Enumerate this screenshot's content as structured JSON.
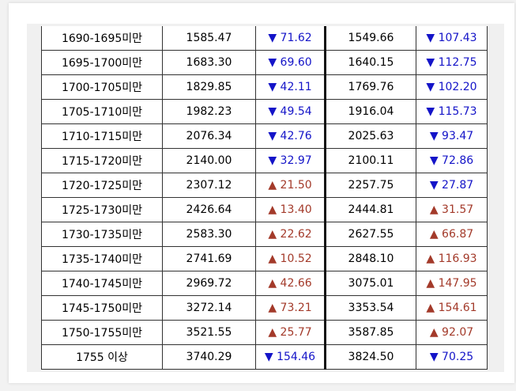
{
  "table": {
    "rows": [
      {
        "range": "1690-1695미만",
        "v1": "1585.47",
        "c1": "▼ 71.62",
        "d1": "down",
        "v2": "1549.66",
        "c2": "▼ 107.43",
        "d2": "down"
      },
      {
        "range": "1695-1700미만",
        "v1": "1683.30",
        "c1": "▼ 69.60",
        "d1": "down",
        "v2": "1640.15",
        "c2": "▼ 112.75",
        "d2": "down"
      },
      {
        "range": "1700-1705미만",
        "v1": "1829.85",
        "c1": "▼ 42.11",
        "d1": "down",
        "v2": "1769.76",
        "c2": "▼ 102.20",
        "d2": "down"
      },
      {
        "range": "1705-1710미만",
        "v1": "1982.23",
        "c1": "▼ 49.54",
        "d1": "down",
        "v2": "1916.04",
        "c2": "▼ 115.73",
        "d2": "down"
      },
      {
        "range": "1710-1715미만",
        "v1": "2076.34",
        "c1": "▼ 42.76",
        "d1": "down",
        "v2": "2025.63",
        "c2": "▼ 93.47",
        "d2": "down"
      },
      {
        "range": "1715-1720미만",
        "v1": "2140.00",
        "c1": "▼ 32.97",
        "d1": "down",
        "v2": "2100.11",
        "c2": "▼ 72.86",
        "d2": "down"
      },
      {
        "range": "1720-1725미만",
        "v1": "2307.12",
        "c1": "▲ 21.50",
        "d1": "up",
        "v2": "2257.75",
        "c2": "▼ 27.87",
        "d2": "down"
      },
      {
        "range": "1725-1730미만",
        "v1": "2426.64",
        "c1": "▲ 13.40",
        "d1": "up",
        "v2": "2444.81",
        "c2": "▲ 31.57",
        "d2": "up"
      },
      {
        "range": "1730-1735미만",
        "v1": "2583.30",
        "c1": "▲ 22.62",
        "d1": "up",
        "v2": "2627.55",
        "c2": "▲ 66.87",
        "d2": "up"
      },
      {
        "range": "1735-1740미만",
        "v1": "2741.69",
        "c1": "▲ 10.52",
        "d1": "up",
        "v2": "2848.10",
        "c2": "▲ 116.93",
        "d2": "up"
      },
      {
        "range": "1740-1745미만",
        "v1": "2969.72",
        "c1": "▲ 42.66",
        "d1": "up",
        "v2": "3075.01",
        "c2": "▲ 147.95",
        "d2": "up"
      },
      {
        "range": "1745-1750미만",
        "v1": "3272.14",
        "c1": "▲ 73.21",
        "d1": "up",
        "v2": "3353.54",
        "c2": "▲ 154.61",
        "d2": "up"
      },
      {
        "range": "1750-1755미만",
        "v1": "3521.55",
        "c1": "▲ 25.77",
        "d1": "up",
        "v2": "3587.85",
        "c2": "▲ 92.07",
        "d2": "up"
      },
      {
        "range": "1755 이상",
        "v1": "3740.29",
        "c1": "▼ 154.46",
        "d1": "down",
        "v2": "3824.50",
        "c2": "▼ 70.25",
        "d2": "down"
      }
    ]
  },
  "colors": {
    "down_color": "#1414c8",
    "up_color": "#a33a2a",
    "border_color": "#333333"
  }
}
